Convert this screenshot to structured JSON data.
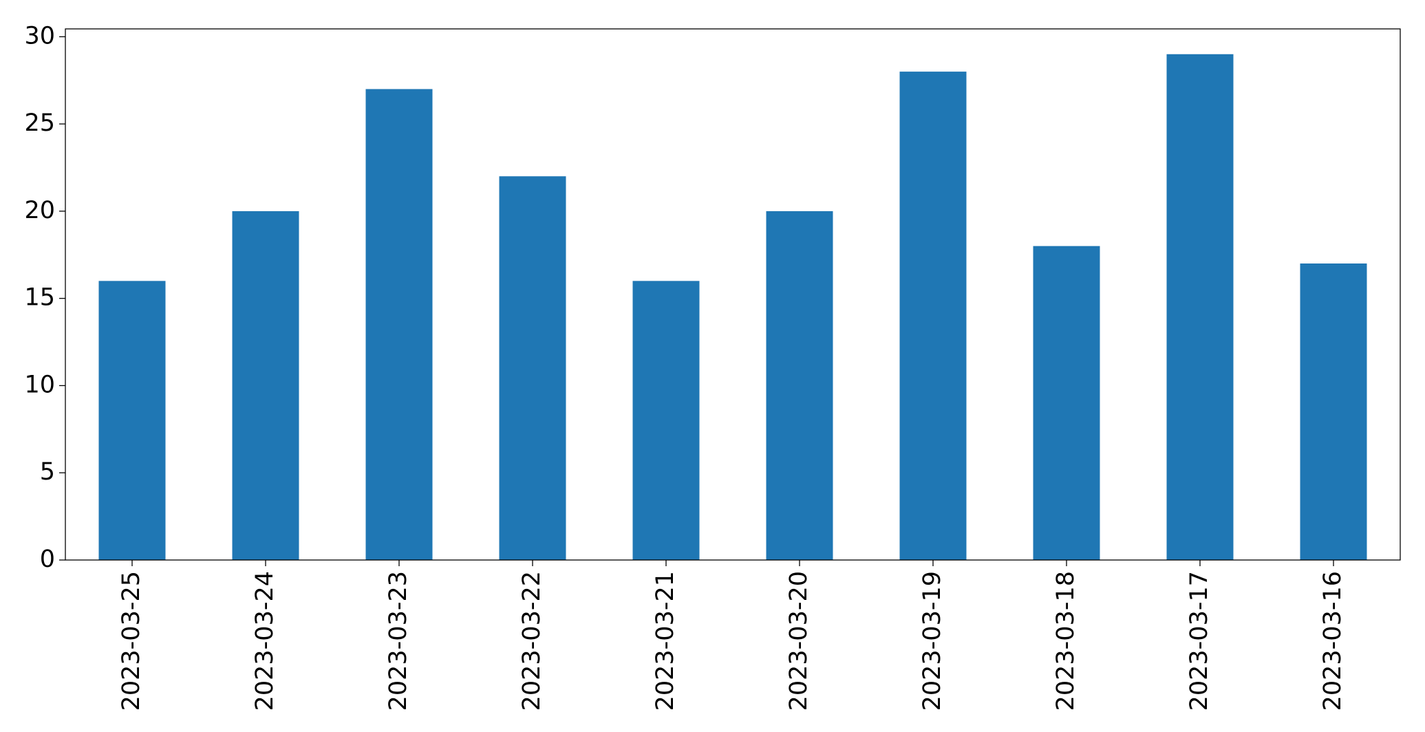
{
  "chart_data": {
    "type": "bar",
    "categories": [
      "2023-03-25",
      "2023-03-24",
      "2023-03-23",
      "2023-03-22",
      "2023-03-21",
      "2023-03-20",
      "2023-03-19",
      "2023-03-18",
      "2023-03-17",
      "2023-03-16"
    ],
    "values": [
      16,
      20,
      27,
      22,
      16,
      20,
      28,
      18,
      29,
      17
    ],
    "color": "#1f77b4",
    "ylim": [
      0,
      30.45
    ],
    "yticks": [
      0,
      5,
      10,
      15,
      20,
      25,
      30
    ],
    "grid": false
  }
}
